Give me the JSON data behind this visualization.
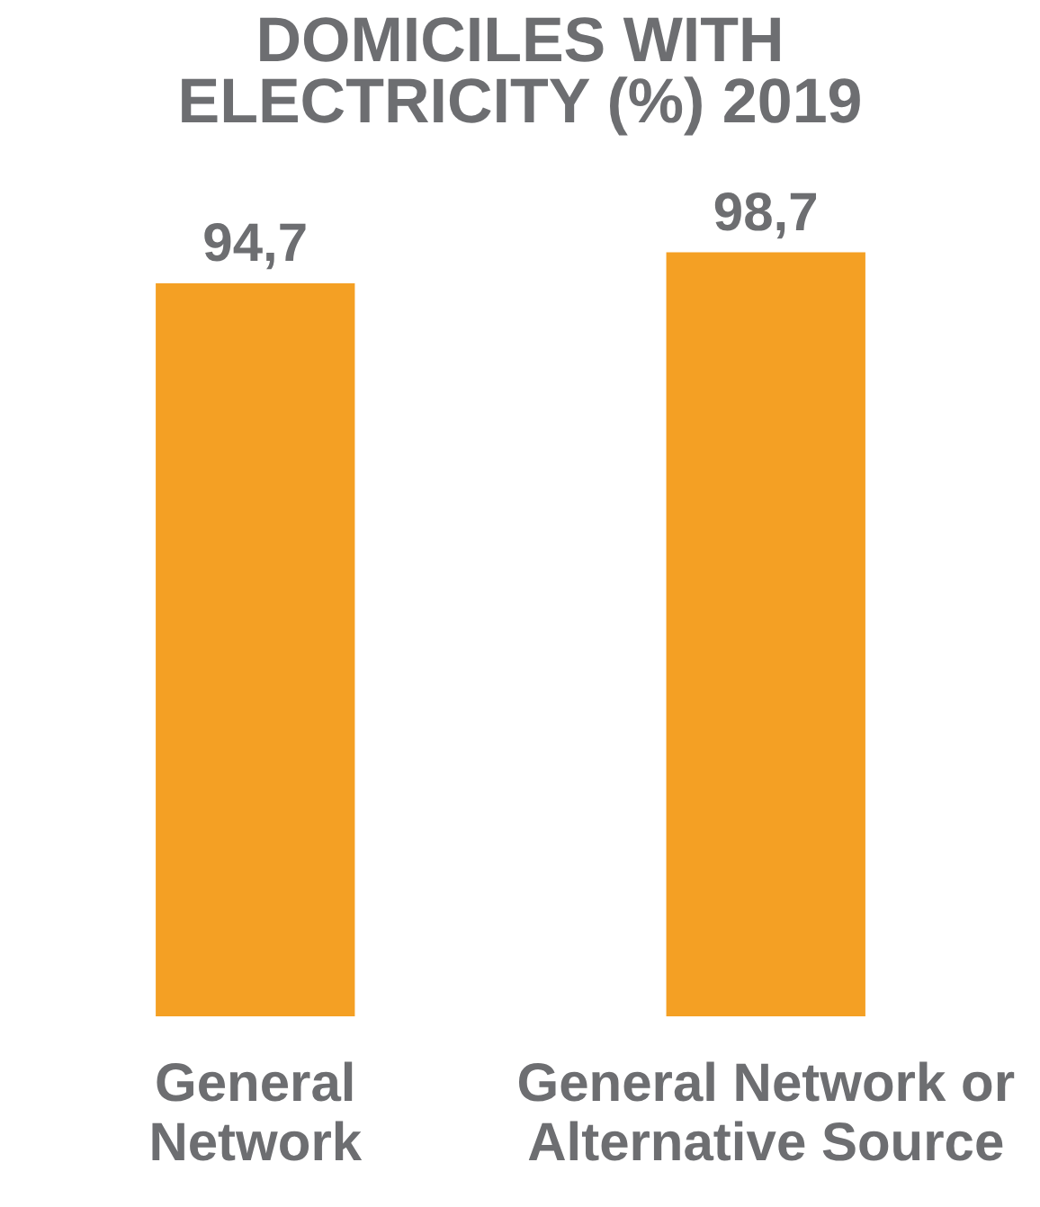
{
  "chart_data": {
    "type": "bar",
    "title": "DOMICILES WITH ELECTRICITY (%) 2019",
    "categories": [
      "General Network",
      "General Network or Alternative Source"
    ],
    "tick_labels": "x",
    "series": [
      {
        "color": "#f4a024",
        "values": [
          94.7,
          98.7
        ],
        "value_labels": [
          "94,7",
          "98,7"
        ]
      }
    ]
  }
}
